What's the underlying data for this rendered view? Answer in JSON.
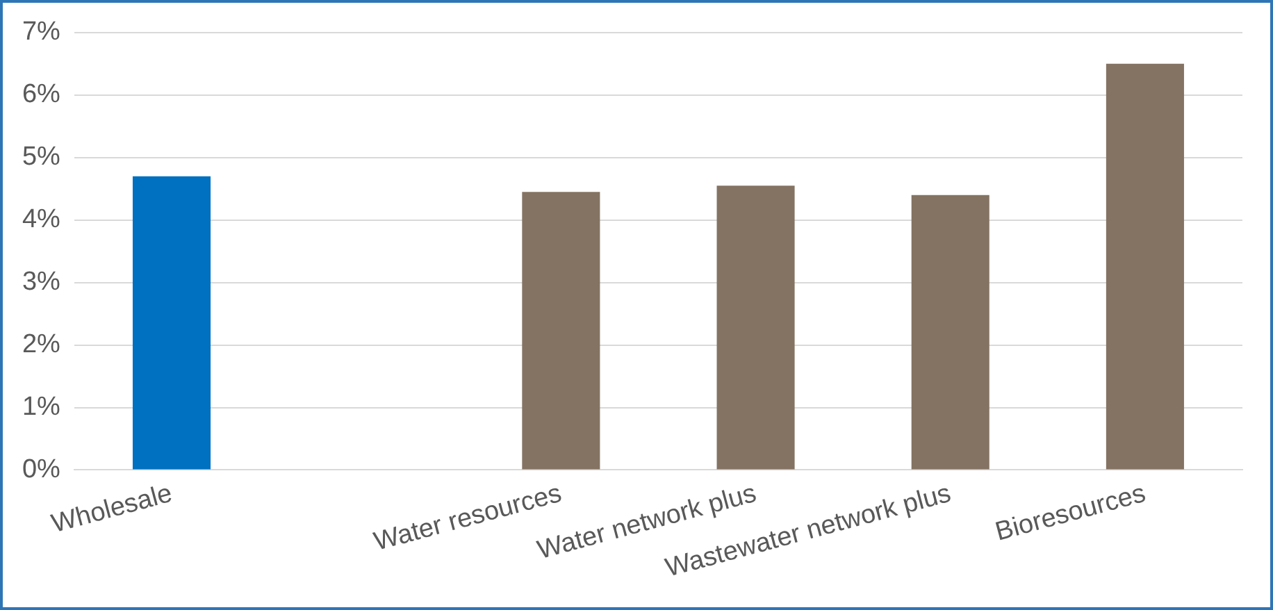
{
  "chart_data": {
    "type": "bar",
    "categories": [
      "Wholesale",
      null,
      "Water resources",
      "Water network plus",
      "Wastewater network plus",
      "Bioresources"
    ],
    "values": [
      4.7,
      null,
      4.45,
      4.55,
      4.4,
      6.5
    ],
    "colors": [
      "#0070c0",
      "#847362",
      "#847362",
      "#847362",
      "#847362",
      "#847362"
    ],
    "ylim": [
      0,
      7
    ],
    "yticks": [
      {
        "value": 0,
        "label": "0%"
      },
      {
        "value": 1,
        "label": "1%"
      },
      {
        "value": 2,
        "label": "2%"
      },
      {
        "value": 3,
        "label": "3%"
      },
      {
        "value": 4,
        "label": "4%"
      },
      {
        "value": 5,
        "label": "5%"
      },
      {
        "value": 6,
        "label": "6%"
      },
      {
        "value": 7,
        "label": "7%"
      }
    ],
    "grid": "y",
    "legend": false
  }
}
